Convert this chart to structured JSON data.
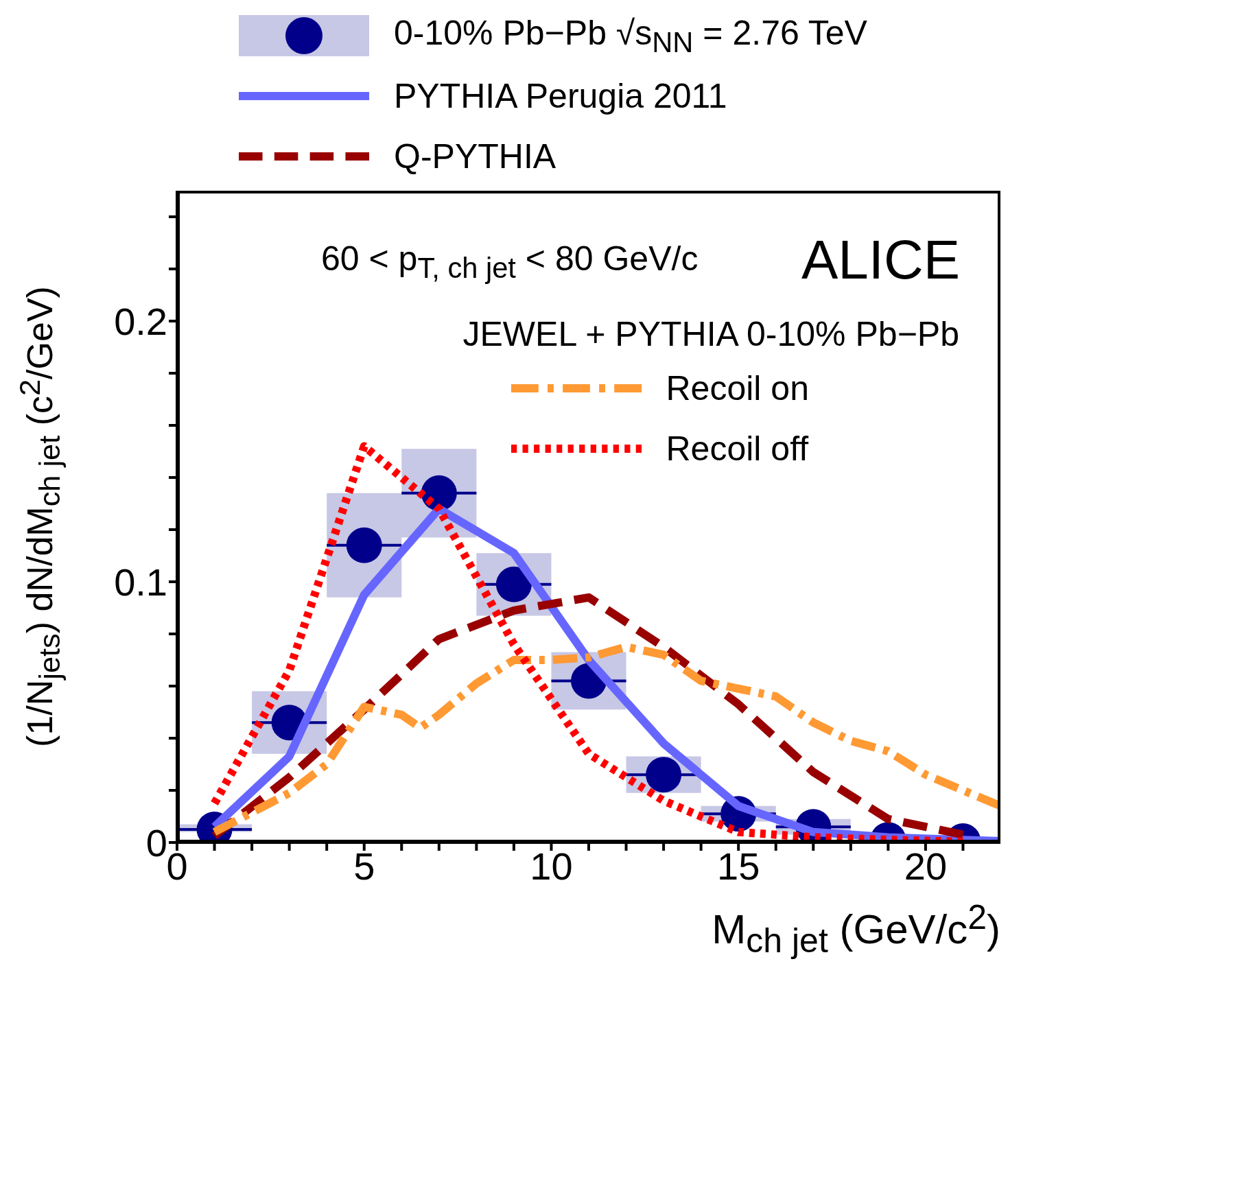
{
  "chart_data": {
    "type": "line",
    "xlabel": "M$_{ch jet}$ (GeV/c$^{2}$)",
    "ylabel": "(1/N$_{jets}$) dN/dM$_{ch jet}$ (c$^{2}$/GeV)",
    "legend_title": "JEWEL + PYTHIA 0-10% Pb−Pb",
    "annotations": [
      "60 < p$_{T, ch jet}$ < 80 GeV/c",
      "ALICE"
    ],
    "xlim": [
      0,
      22
    ],
    "xticks": [
      0,
      {
        "value": 1,
        "label": null
      },
      {
        "value": 2,
        "label": null
      },
      {
        "value": 3,
        "label": null
      },
      {
        "value": 4,
        "label": null
      },
      5,
      {
        "value": 6,
        "label": null
      },
      {
        "value": 7,
        "label": null
      },
      {
        "value": 8,
        "label": null
      },
      {
        "value": 9,
        "label": null
      },
      10,
      {
        "value": 11,
        "label": null
      },
      {
        "value": 12,
        "label": null
      },
      {
        "value": 13,
        "label": null
      },
      {
        "value": 14,
        "label": null
      },
      15,
      {
        "value": 16,
        "label": null
      },
      {
        "value": 17,
        "label": null
      },
      {
        "value": 18,
        "label": null
      },
      {
        "value": 19,
        "label": null
      },
      20,
      {
        "value": 21,
        "label": null
      }
    ],
    "ylim": [
      0,
      0.25
    ],
    "yticks": [
      0,
      {
        "value": 0.02,
        "label": null
      },
      {
        "value": 0.04,
        "label": null
      },
      {
        "value": 0.06,
        "label": null
      },
      {
        "value": 0.08,
        "label": null
      },
      0.1,
      {
        "value": 0.12,
        "label": null
      },
      {
        "value": 0.14,
        "label": null
      },
      {
        "value": 0.16,
        "label": null
      },
      {
        "value": 0.18,
        "label": null
      },
      0.2,
      {
        "value": 0.22,
        "label": null
      },
      {
        "value": 0.24,
        "label": null
      }
    ],
    "legend": "top",
    "series": [
      {
        "name": "0-10% Pb−Pb √s$_{NN}$ = 2.76 TeV",
        "type": "scatter",
        "marker": "circle",
        "color": "#00008b",
        "x": [
          1,
          3,
          5,
          7,
          9,
          11,
          13,
          15,
          17,
          19,
          21
        ],
        "values": [
          0.005,
          0.046,
          0.114,
          0.134,
          0.099,
          0.062,
          0.026,
          0.011,
          0.006,
          0.001,
          0.0005
        ],
        "errors": [
          [
            0.004,
            0.007
          ],
          0.012,
          0.02,
          0.017,
          0.012,
          0.011,
          0.007,
          0.003,
          0.003,
          null,
          null
        ],
        "xerrors": [
          1,
          1,
          1,
          1,
          1,
          1,
          1,
          1,
          1,
          null,
          null
        ]
      },
      {
        "name": "PYTHIA  Perugia 2011",
        "line_style": "solid",
        "color": "#6666ff",
        "x": [
          1,
          3,
          5,
          7,
          9,
          11,
          13,
          15,
          17,
          19,
          21,
          22
        ],
        "values": [
          0.006,
          0.033,
          0.095,
          0.128,
          0.111,
          0.07,
          0.038,
          0.014,
          0.004,
          0.002,
          0.001,
          0.0005
        ]
      },
      {
        "name": "Q-PYTHIA",
        "line_style": "dashed",
        "color": "#990000",
        "x": [
          1,
          3,
          5,
          7,
          9,
          11,
          13,
          15,
          17,
          19,
          21
        ],
        "values": [
          0.0025,
          0.025,
          0.051,
          0.078,
          0.089,
          0.094,
          0.075,
          0.053,
          0.027,
          0.009,
          0.003
        ]
      },
      {
        "name": "Recoil on",
        "line_style": "dashdot",
        "color": "#ff9933",
        "x": [
          1,
          3,
          4,
          5,
          6,
          6.5,
          7,
          8,
          9,
          10,
          11,
          12,
          13,
          14,
          15,
          16,
          17,
          18,
          19,
          20,
          21,
          22
        ],
        "values": [
          0.004,
          0.019,
          0.03,
          0.052,
          0.049,
          0.044,
          0.049,
          0.061,
          0.07,
          0.07,
          0.071,
          0.075,
          0.072,
          0.062,
          0.059,
          0.056,
          0.046,
          0.039,
          0.035,
          0.026,
          0.02,
          0.014
        ]
      },
      {
        "name": "Recoil off",
        "line_style": "dotted",
        "color": "#ff0000",
        "x": [
          1,
          3,
          5,
          7,
          9,
          11,
          13,
          15,
          17,
          19,
          21
        ],
        "values": [
          0.015,
          0.066,
          0.152,
          0.128,
          0.076,
          0.034,
          0.016,
          0.004,
          0.002,
          0.001,
          0.0003
        ]
      }
    ]
  }
}
